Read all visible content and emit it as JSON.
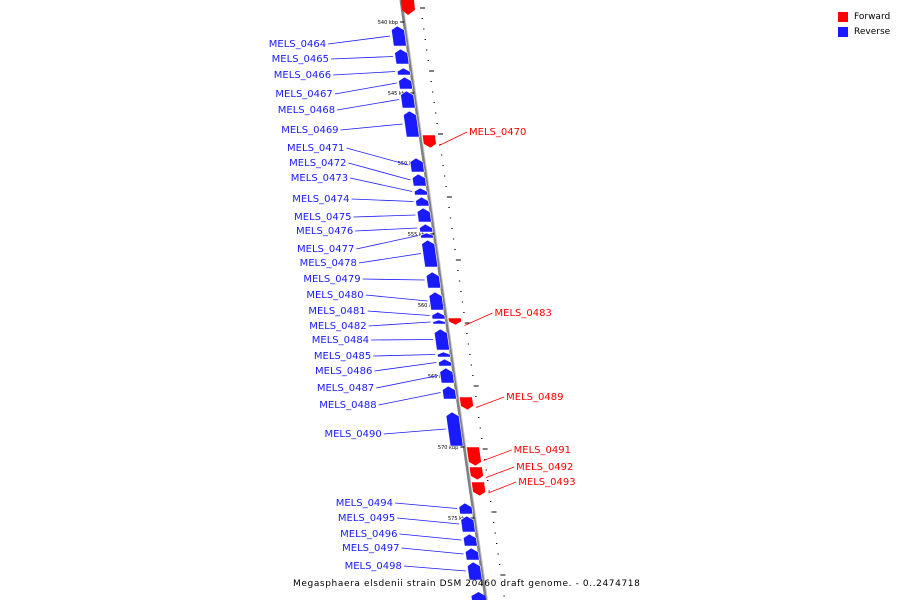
{
  "legend": {
    "forward_label": "Forward",
    "reverse_label": "Reverse",
    "forward_color": "#ff0000",
    "reverse_color": "#1a1aff"
  },
  "caption": "Megasphaera elsdenii strain DSM 20460 draft genome. - 0..2474718",
  "scale_ticks": [
    "540 kbp",
    "545 kbp",
    "550 kbp",
    "555 kbp",
    "560 kbp",
    "565 kbp",
    "570 kbp",
    "575 kbp"
  ],
  "genes": [
    {
      "name": "MELS_0464",
      "strand": "reverse"
    },
    {
      "name": "MELS_0465",
      "strand": "reverse"
    },
    {
      "name": "MELS_0466",
      "strand": "reverse"
    },
    {
      "name": "MELS_0467",
      "strand": "reverse"
    },
    {
      "name": "MELS_0468",
      "strand": "reverse"
    },
    {
      "name": "MELS_0469",
      "strand": "reverse"
    },
    {
      "name": "MELS_0470",
      "strand": "forward"
    },
    {
      "name": "MELS_0471",
      "strand": "reverse"
    },
    {
      "name": "MELS_0472",
      "strand": "reverse"
    },
    {
      "name": "MELS_0473",
      "strand": "reverse"
    },
    {
      "name": "MELS_0474",
      "strand": "reverse"
    },
    {
      "name": "MELS_0475",
      "strand": "reverse"
    },
    {
      "name": "MELS_0476",
      "strand": "reverse"
    },
    {
      "name": "MELS_0477",
      "strand": "reverse"
    },
    {
      "name": "MELS_0478",
      "strand": "reverse"
    },
    {
      "name": "MELS_0479",
      "strand": "reverse"
    },
    {
      "name": "MELS_0480",
      "strand": "reverse"
    },
    {
      "name": "MELS_0481",
      "strand": "reverse"
    },
    {
      "name": "MELS_0482",
      "strand": "reverse"
    },
    {
      "name": "MELS_0483",
      "strand": "forward"
    },
    {
      "name": "MELS_0484",
      "strand": "reverse"
    },
    {
      "name": "MELS_0485",
      "strand": "reverse"
    },
    {
      "name": "MELS_0486",
      "strand": "reverse"
    },
    {
      "name": "MELS_0487",
      "strand": "reverse"
    },
    {
      "name": "MELS_0488",
      "strand": "reverse"
    },
    {
      "name": "MELS_0489",
      "strand": "forward"
    },
    {
      "name": "MELS_0490",
      "strand": "reverse"
    },
    {
      "name": "MELS_0491",
      "strand": "forward"
    },
    {
      "name": "MELS_0492",
      "strand": "forward"
    },
    {
      "name": "MELS_0493",
      "strand": "forward"
    },
    {
      "name": "MELS_0494",
      "strand": "reverse"
    },
    {
      "name": "MELS_0495",
      "strand": "reverse"
    },
    {
      "name": "MELS_0496",
      "strand": "reverse"
    },
    {
      "name": "MELS_0497",
      "strand": "reverse"
    },
    {
      "name": "MELS_0498",
      "strand": "reverse"
    }
  ]
}
